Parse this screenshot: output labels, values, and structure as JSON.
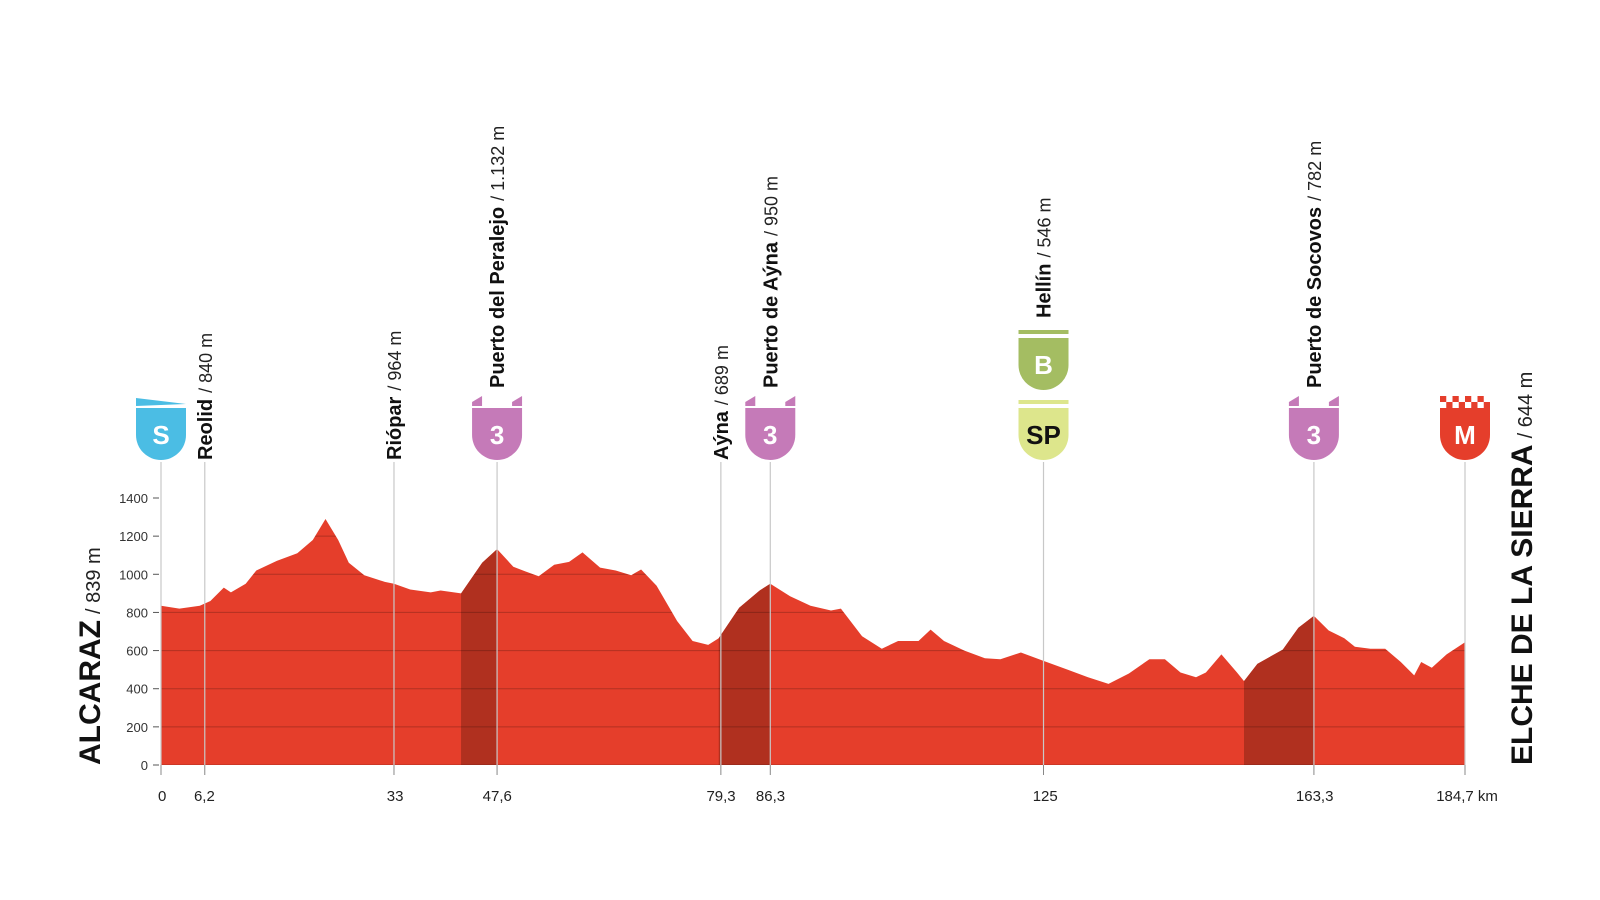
{
  "chart_data": {
    "type": "area",
    "color": "#e53e2b",
    "climb_color": "#b0301f",
    "grid": true,
    "x": [
      0,
      2.6,
      5.5,
      7,
      8.9,
      9.9,
      12,
      13.5,
      16.4,
      19.3,
      21.5,
      23.3,
      25.1,
      26.6,
      28.8,
      31.7,
      33,
      35.3,
      38.2,
      39.6,
      42.5,
      45.5,
      47.6,
      49.9,
      51.6,
      53.5,
      55.7,
      57.8,
      59.7,
      62.2,
      64.4,
      66.6,
      68,
      70.2,
      73.1,
      75.3,
      77.5,
      79,
      81.9,
      84.8,
      86.3,
      89.1,
      92,
      94.9,
      96.3,
      99.3,
      102.1,
      104.4,
      107.3,
      109,
      110.9,
      113.8,
      116.7,
      118.9,
      121.8,
      125,
      128.4,
      131.3,
      134.2,
      137.1,
      140,
      142.2,
      144.4,
      146.6,
      148,
      150.2,
      152.4,
      153.4,
      155.3,
      158.9,
      161.1,
      163.3,
      165.4,
      167.6,
      169.1,
      171.3,
      173.4,
      175.6,
      177.5,
      178.5,
      180,
      182.1,
      184.7
    ],
    "values": [
      835,
      820,
      835,
      860,
      930,
      905,
      950,
      1020,
      1070,
      1110,
      1180,
      1290,
      1180,
      1060,
      995,
      960,
      950,
      920,
      905,
      915,
      900,
      1060,
      1132,
      1040,
      1015,
      990,
      1050,
      1065,
      1115,
      1035,
      1020,
      995,
      1025,
      940,
      755,
      650,
      630,
      665,
      825,
      915,
      950,
      885,
      835,
      810,
      820,
      675,
      610,
      650,
      650,
      710,
      650,
      600,
      560,
      555,
      590,
      546,
      500,
      460,
      425,
      480,
      555,
      555,
      485,
      460,
      485,
      580,
      485,
      440,
      530,
      605,
      720,
      782,
      705,
      665,
      620,
      610,
      610,
      540,
      470,
      540,
      510,
      580,
      644
    ],
    "climbs": [
      {
        "start": 42.5,
        "end": 47.6
      },
      {
        "start": 79,
        "end": 86.3
      },
      {
        "start": 153.4,
        "end": 163.3
      }
    ],
    "xlim": [
      0,
      184.7
    ],
    "ylim": [
      0,
      1400
    ],
    "yticks": [
      0,
      200,
      400,
      600,
      800,
      1000,
      1200,
      1400
    ],
    "xticks": [
      0,
      {
        "value": 6.2,
        "label": "6,2"
      },
      33,
      {
        "value": 47.6,
        "label": "47,6"
      },
      {
        "value": 79.3,
        "label": "79,3"
      },
      {
        "value": 86.3,
        "label": "86,3"
      },
      125,
      {
        "value": 163.3,
        "label": "163,3"
      },
      {
        "value": 184.7,
        "label": "184,7 km"
      }
    ],
    "start": {
      "name": "ALCARAZ",
      "altitude": "/ 839 m",
      "icons": [
        {
          "label": "S",
          "color": "#4bbde4",
          "text_color": "#ffffff"
        }
      ]
    },
    "finish": {
      "name": "ELCHE DE LA SIERRA",
      "altitude": "/ 644 m",
      "icons": [
        {
          "label": "M",
          "color": "#e53e2b",
          "text_color": "#ffffff"
        }
      ]
    },
    "waypoints": [
      {
        "km": 6.2,
        "name": "Reolid",
        "altitude": "/ 840 m",
        "icons": []
      },
      {
        "km": 33,
        "name": "Riópar",
        "altitude": "/ 964 m",
        "icons": []
      },
      {
        "km": 47.6,
        "name": "Puerto del Peralejo",
        "altitude": "/ 1.132 m",
        "icons": [
          {
            "label": "3",
            "color": "#c57ab8",
            "text_color": "#ffffff"
          }
        ]
      },
      {
        "km": 79.3,
        "name": "Aýna",
        "altitude": "/ 689 m",
        "icons": []
      },
      {
        "km": 86.3,
        "name": "Puerto de Aýna",
        "altitude": "/ 950 m",
        "icons": [
          {
            "label": "3",
            "color": "#c57ab8",
            "text_color": "#ffffff"
          }
        ]
      },
      {
        "km": 125,
        "name": "Hellín",
        "altitude": "/ 546 m",
        "icons": [
          {
            "label": "SP",
            "color": "#dde68c",
            "text_color": "#111111"
          },
          {
            "label": "B",
            "color": "#a4bd62",
            "text_color": "#ffffff"
          }
        ]
      },
      {
        "km": 163.3,
        "name": "Puerto de Socovos",
        "altitude": "/ 782 m",
        "icons": [
          {
            "label": "3",
            "color": "#c57ab8",
            "text_color": "#ffffff"
          }
        ]
      }
    ]
  }
}
